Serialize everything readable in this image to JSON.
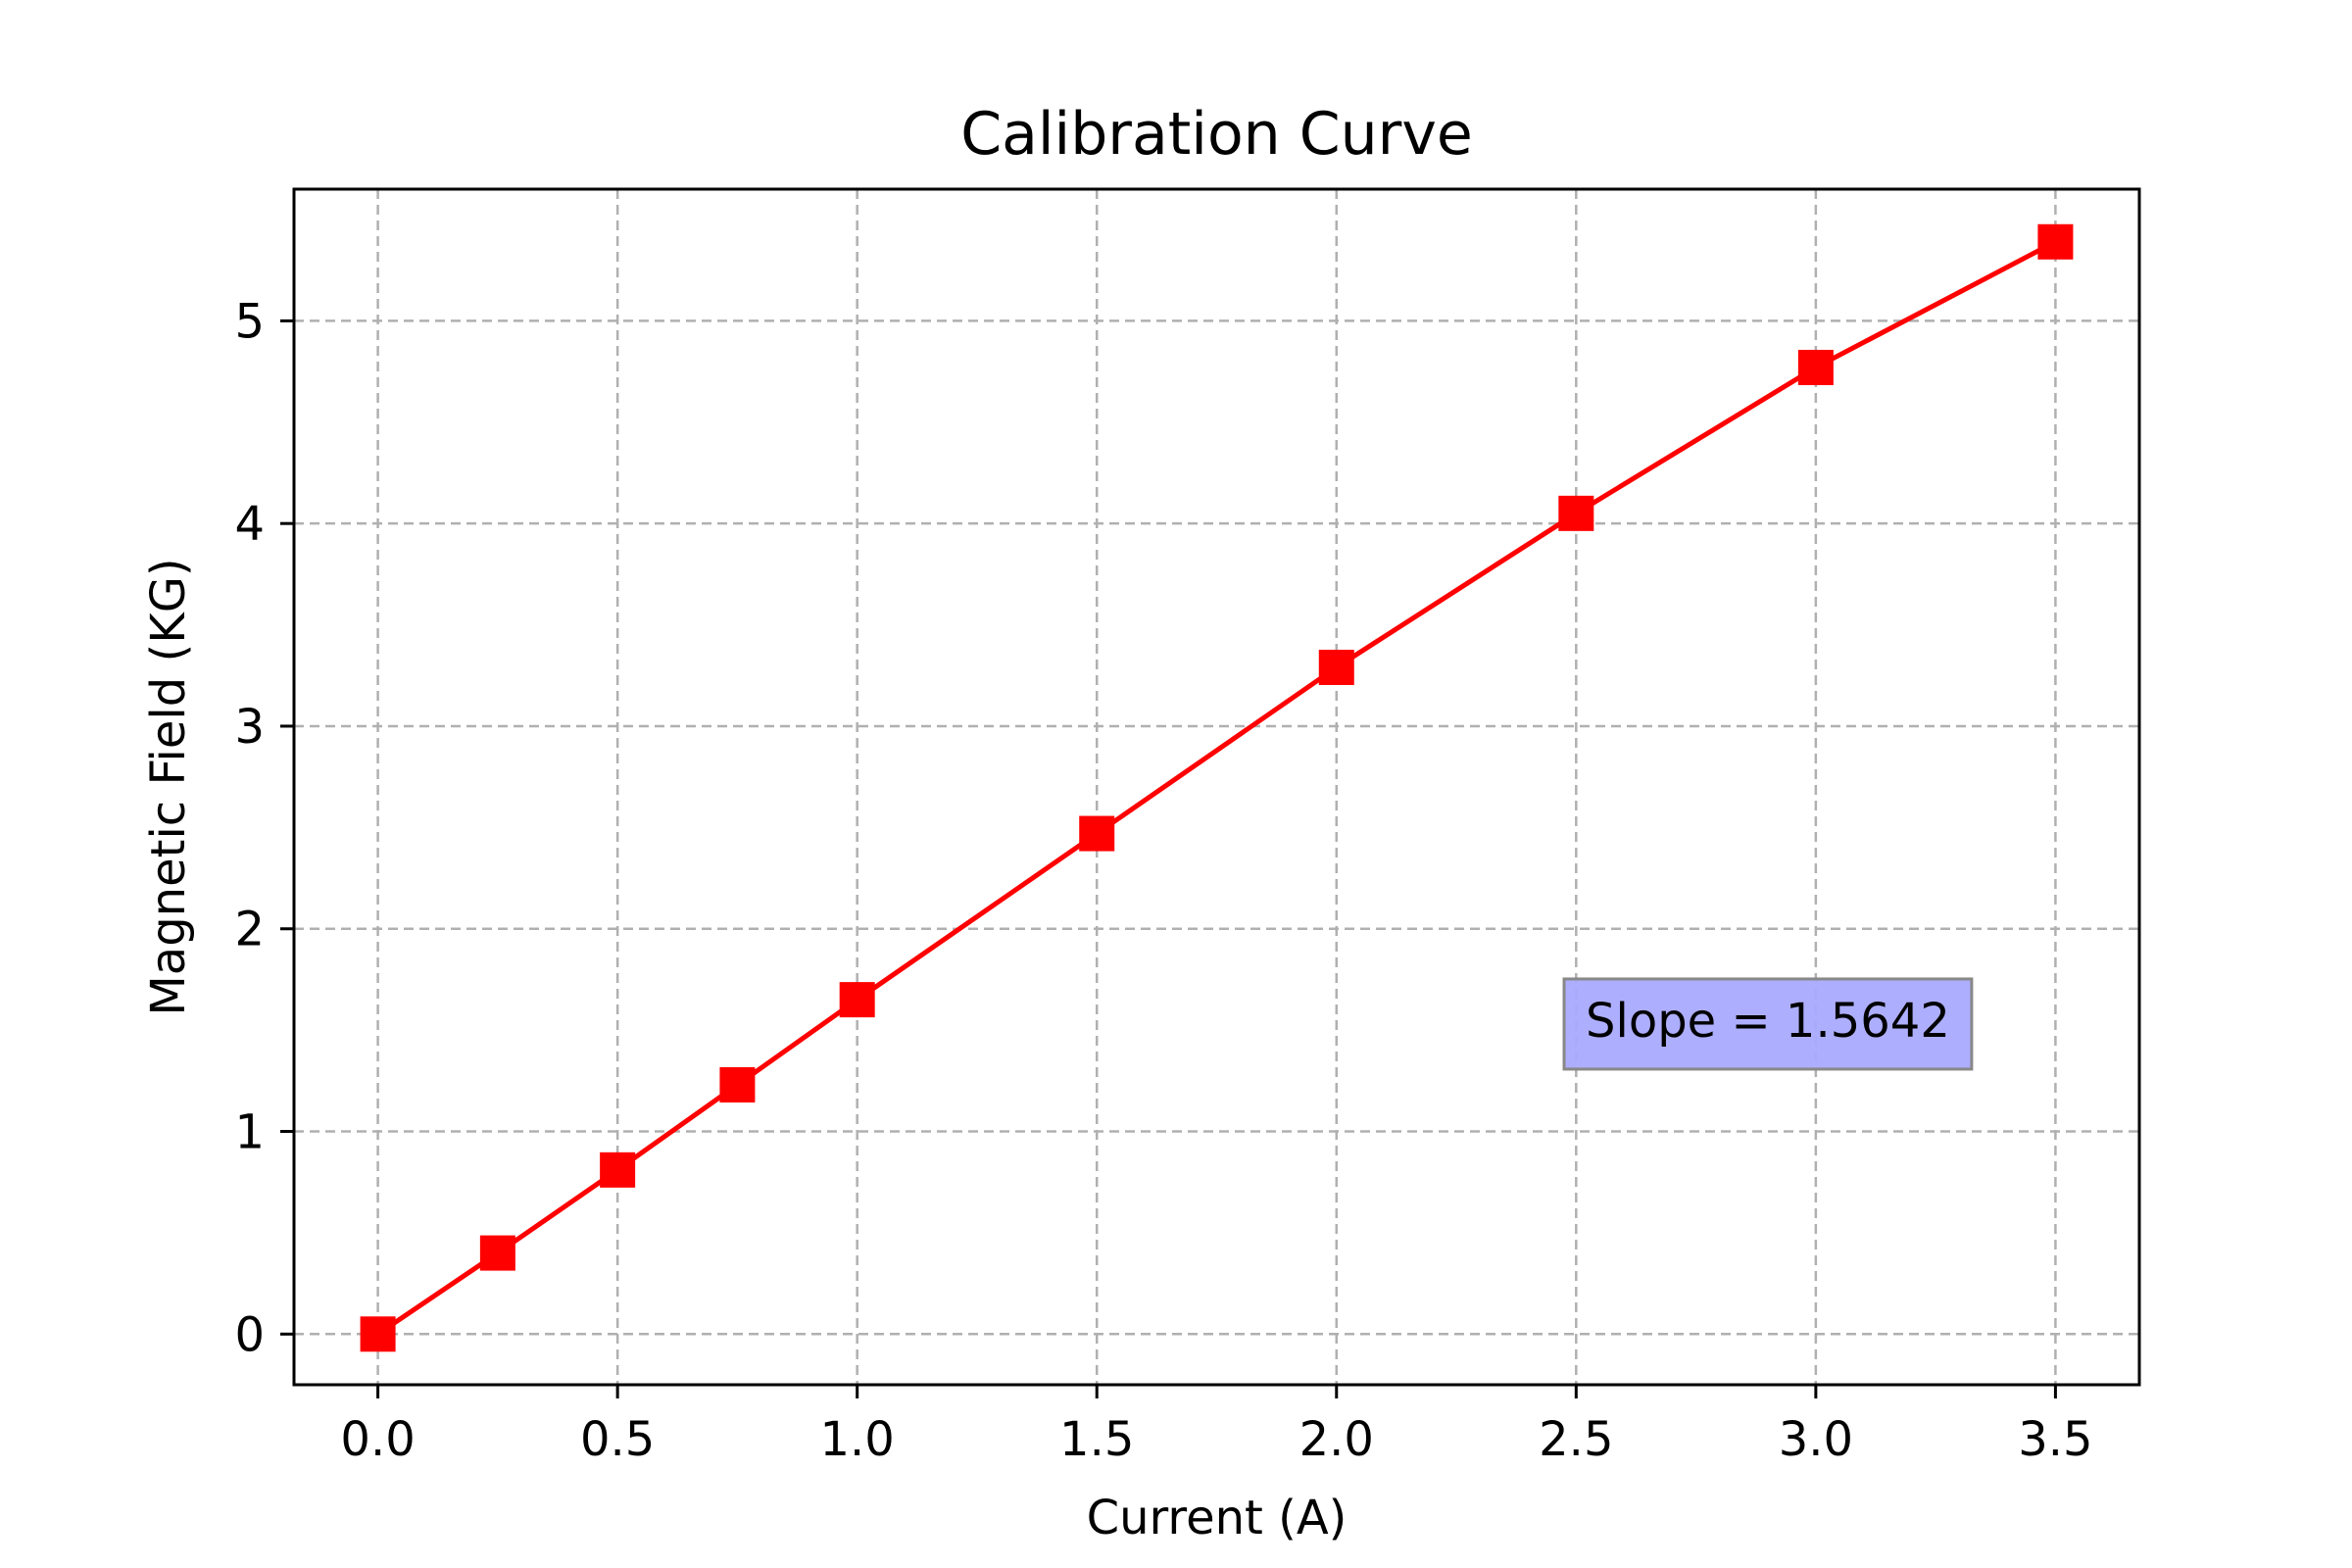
{
  "chart_data": {
    "type": "line",
    "title": "Calibration Curve",
    "xlabel": "Current (A)",
    "ylabel": "Magnetic Field (KG)",
    "xlim": [
      -0.175,
      3.675
    ],
    "ylim": [
      -0.25,
      5.65
    ],
    "xticks": [
      0.0,
      0.5,
      1.0,
      1.5,
      2.0,
      2.5,
      3.0,
      3.5
    ],
    "xtick_labels": [
      "0.0",
      "0.5",
      "1.0",
      "1.5",
      "2.0",
      "2.5",
      "3.0",
      "3.5"
    ],
    "yticks": [
      0,
      1,
      2,
      3,
      4,
      5
    ],
    "ytick_labels": [
      "0",
      "1",
      "2",
      "3",
      "4",
      "5"
    ],
    "grid": true,
    "grid_style": "dashed",
    "series": [
      {
        "color": "#ff0000",
        "marker": "square",
        "x": [
          0.0,
          0.25,
          0.5,
          0.75,
          1.0,
          1.5,
          2.0,
          2.5,
          3.0,
          3.5
        ],
        "y": [
          0.0,
          0.4,
          0.81,
          1.23,
          1.65,
          2.47,
          3.29,
          4.05,
          4.77,
          5.39
        ]
      }
    ],
    "annotation": {
      "text": "Slope = 1.5642",
      "x": 2.9,
      "y": 1.53,
      "background": "#aaaaff",
      "border": "#888888"
    }
  }
}
